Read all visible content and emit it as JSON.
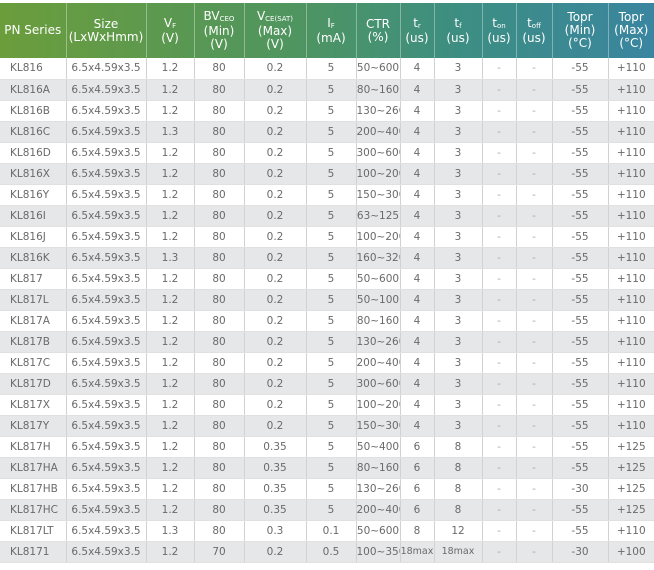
{
  "colors": {
    "header_start": "#6b9d3b",
    "header_end": "#3a85a0",
    "row_alt": "#e6e7e8",
    "text": "#6a6a6a"
  },
  "columns": [
    {
      "main": "PN Series",
      "sub": "",
      "lines": []
    },
    {
      "main": "Size",
      "sub": "",
      "lines": [
        "(LxWxHmm)"
      ]
    },
    {
      "main": "V",
      "sub": "F",
      "lines": [
        "(V)"
      ]
    },
    {
      "main": "BV",
      "sub": "CEO",
      "lines": [
        "(Min)",
        "(V)"
      ]
    },
    {
      "main": "V",
      "sub": "CE(SAT)",
      "lines": [
        "(Max)",
        "(V)"
      ]
    },
    {
      "main": "I",
      "sub": "F",
      "lines": [
        "(mA)"
      ]
    },
    {
      "main": "CTR",
      "sub": "",
      "lines": [
        "(%)"
      ]
    },
    {
      "main": "t",
      "sub": "r",
      "lines": [
        "(us)"
      ]
    },
    {
      "main": "t",
      "sub": "f",
      "lines": [
        "(us)"
      ]
    },
    {
      "main": "t",
      "sub": "on",
      "lines": [
        "(us)"
      ]
    },
    {
      "main": "t",
      "sub": "off",
      "lines": [
        "(us)"
      ]
    },
    {
      "main": "Topr",
      "sub": "",
      "lines": [
        "(Min)",
        "(°C)"
      ]
    },
    {
      "main": "Topr",
      "sub": "",
      "lines": [
        "(Max)",
        "(°C)"
      ]
    }
  ],
  "rows": [
    [
      "KL816",
      "6.5x4.59x3.5",
      "1.2",
      "80",
      "0.2",
      "5",
      "50~600",
      "4",
      "3",
      "-",
      "-",
      "-55",
      "+110"
    ],
    [
      "KL816A",
      "6.5x4.59x3.5",
      "1.2",
      "80",
      "0.2",
      "5",
      "80~160",
      "4",
      "3",
      "-",
      "-",
      "-55",
      "+110"
    ],
    [
      "KL816B",
      "6.5x4.59x3.5",
      "1.2",
      "80",
      "0.2",
      "5",
      "130~260",
      "4",
      "3",
      "-",
      "-",
      "-55",
      "+110"
    ],
    [
      "KL816C",
      "6.5x4.59x3.5",
      "1.3",
      "80",
      "0.2",
      "5",
      "200~400",
      "4",
      "3",
      "-",
      "-",
      "-55",
      "+110"
    ],
    [
      "KL816D",
      "6.5x4.59x3.5",
      "1.2",
      "80",
      "0.2",
      "5",
      "300~600",
      "4",
      "3",
      "-",
      "-",
      "-55",
      "+110"
    ],
    [
      "KL816X",
      "6.5x4.59x3.5",
      "1.2",
      "80",
      "0.2",
      "5",
      "100~200",
      "4",
      "3",
      "-",
      "-",
      "-55",
      "+110"
    ],
    [
      "KL816Y",
      "6.5x4.59x3.5",
      "1.2",
      "80",
      "0.2",
      "5",
      "150~300",
      "4",
      "3",
      "-",
      "-",
      "-55",
      "+110"
    ],
    [
      "KL816I",
      "6.5x4.59x3.5",
      "1.2",
      "80",
      "0.2",
      "5",
      "63~125",
      "4",
      "3",
      "-",
      "-",
      "-55",
      "+110"
    ],
    [
      "KL816J",
      "6.5x4.59x3.5",
      "1.2",
      "80",
      "0.2",
      "5",
      "100~200",
      "4",
      "3",
      "-",
      "-",
      "-55",
      "+110"
    ],
    [
      "KL816K",
      "6.5x4.59x3.5",
      "1.3",
      "80",
      "0.2",
      "5",
      "160~320",
      "4",
      "3",
      "-",
      "-",
      "-55",
      "+110"
    ],
    [
      "KL817",
      "6.5x4.59x3.5",
      "1.2",
      "80",
      "0.2",
      "5",
      "50~600",
      "4",
      "3",
      "-",
      "-",
      "-55",
      "+110"
    ],
    [
      "KL817L",
      "6.5x4.59x3.5",
      "1.2",
      "80",
      "0.2",
      "5",
      "50~100",
      "4",
      "3",
      "-",
      "-",
      "-55",
      "+110"
    ],
    [
      "KL817A",
      "6.5x4.59x3.5",
      "1.2",
      "80",
      "0.2",
      "5",
      "80~160",
      "4",
      "3",
      "-",
      "-",
      "-55",
      "+110"
    ],
    [
      "KL817B",
      "6.5x4.59x3.5",
      "1.2",
      "80",
      "0.2",
      "5",
      "130~260",
      "4",
      "3",
      "-",
      "-",
      "-55",
      "+110"
    ],
    [
      "KL817C",
      "6.5x4.59x3.5",
      "1.2",
      "80",
      "0.2",
      "5",
      "200~400",
      "4",
      "3",
      "-",
      "-",
      "-55",
      "+110"
    ],
    [
      "KL817D",
      "6.5x4.59x3.5",
      "1.2",
      "80",
      "0.2",
      "5",
      "300~600",
      "4",
      "3",
      "-",
      "-",
      "-55",
      "+110"
    ],
    [
      "KL817X",
      "6.5x4.59x3.5",
      "1.2",
      "80",
      "0.2",
      "5",
      "100~200",
      "4",
      "3",
      "-",
      "-",
      "-55",
      "+110"
    ],
    [
      "KL817Y",
      "6.5x4.59x3.5",
      "1.2",
      "80",
      "0.2",
      "5",
      "150~300",
      "4",
      "3",
      "-",
      "-",
      "-55",
      "+110"
    ],
    [
      "KL817H",
      "6.5x4.59x3.5",
      "1.2",
      "80",
      "0.35",
      "5",
      "50~400",
      "6",
      "8",
      "-",
      "-",
      "-55",
      "+125"
    ],
    [
      "KL817HA",
      "6.5x4.59x3.5",
      "1.2",
      "80",
      "0.35",
      "5",
      "80~160",
      "6",
      "8",
      "-",
      "-",
      "-55",
      "+125"
    ],
    [
      "KL817HB",
      "6.5x4.59x3.5",
      "1.2",
      "80",
      "0.35",
      "5",
      "130~260",
      "6",
      "8",
      "-",
      "-",
      "-30",
      "+125"
    ],
    [
      "KL817HC",
      "6.5x4.59x3.5",
      "1.2",
      "80",
      "0.35",
      "5",
      "200~400",
      "6",
      "8",
      "-",
      "-",
      "-55",
      "+125"
    ],
    [
      "KL817LT",
      "6.5x4.59x3.5",
      "1.3",
      "80",
      "0.3",
      "0.1",
      "50~600",
      "8",
      "12",
      "-",
      "-",
      "-55",
      "+110"
    ],
    [
      "KL8171",
      "6.5x4.59x3.5",
      "1.2",
      "70",
      "0.2",
      "0.5",
      "100~350",
      "18max",
      "18max",
      "-",
      "-",
      "-30",
      "+100"
    ]
  ]
}
